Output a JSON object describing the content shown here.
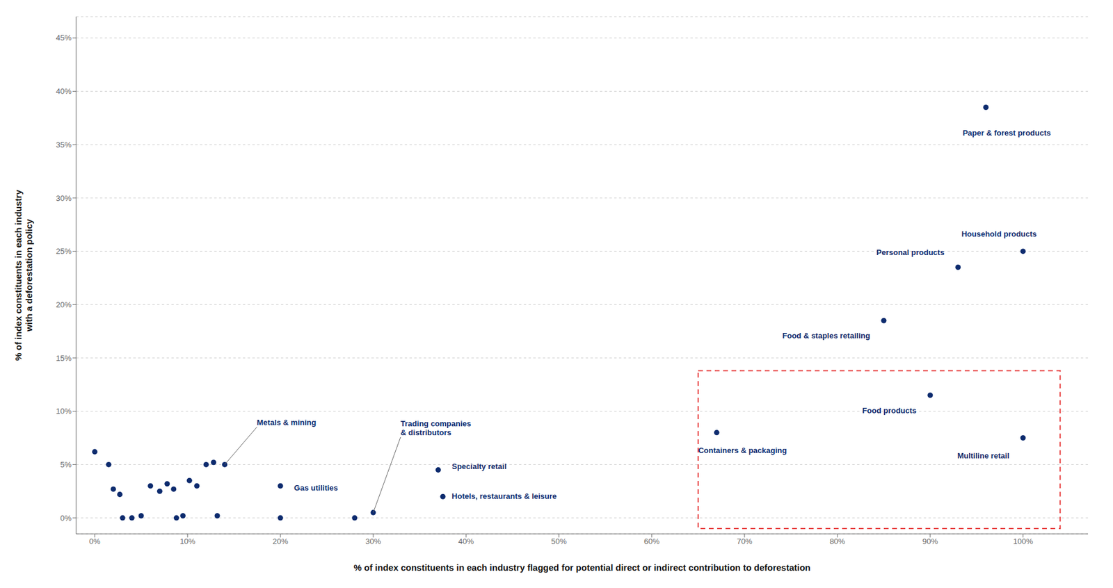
{
  "chart_data": {
    "type": "scatter",
    "xlabel": "% of index constituents in each industry flagged for potential direct or indirect contribution to deforestation",
    "ylabel": "% of index constituents in each industry\nwith a deforestation policy",
    "x": [
      0.0,
      1.5,
      2.0,
      2.7,
      3.0,
      4.0,
      5.0,
      6.0,
      7.0,
      7.8,
      8.5,
      8.8,
      9.5,
      10.2,
      11.0,
      12.0,
      12.8,
      13.2,
      14.0,
      20.0,
      20.0,
      28.0,
      30.0,
      37.0,
      37.5,
      67.0,
      90.0,
      85.0,
      93.0,
      96.0,
      100.0,
      100.0
    ],
    "values": [
      6.2,
      5.0,
      2.7,
      2.2,
      0.0,
      0.0,
      0.2,
      3.0,
      2.5,
      3.2,
      2.7,
      0.0,
      0.2,
      3.5,
      3.0,
      5.0,
      5.2,
      0.2,
      5.0,
      3.0,
      0.0,
      0.0,
      0.5,
      4.5,
      2.0,
      8.0,
      11.5,
      18.5,
      23.5,
      38.5,
      25.0,
      7.5
    ],
    "color": "#0d2b6e",
    "xlim": [
      -2,
      107
    ],
    "ylim": [
      -1.5,
      47
    ],
    "xticks": [
      {
        "value": 0,
        "label": "0%"
      },
      {
        "value": 10,
        "label": "10%"
      },
      {
        "value": 20,
        "label": "20%"
      },
      {
        "value": 30,
        "label": "30%"
      },
      {
        "value": 40,
        "label": "40%"
      },
      {
        "value": 50,
        "label": "50%"
      },
      {
        "value": 60,
        "label": "60%"
      },
      {
        "value": 70,
        "label": "70%"
      },
      {
        "value": 80,
        "label": "80%"
      },
      {
        "value": 90,
        "label": "90%"
      },
      {
        "value": 100,
        "label": "100%"
      }
    ],
    "yticks": [
      {
        "value": 0,
        "label": "0%"
      },
      {
        "value": 5,
        "label": "5%"
      },
      {
        "value": 10,
        "label": "10%"
      },
      {
        "value": 15,
        "label": "15%"
      },
      {
        "value": 20,
        "label": "20%"
      },
      {
        "value": 25,
        "label": "25%"
      },
      {
        "value": 30,
        "label": "30%"
      },
      {
        "value": 35,
        "label": "35%"
      },
      {
        "value": 40,
        "label": "40%"
      },
      {
        "value": 45,
        "label": "45%"
      }
    ],
    "grid": "y",
    "highlight_box": {
      "x": [
        65.0,
        104.0
      ],
      "y": [
        -1.0,
        13.8
      ],
      "color": "#e84040",
      "line_style": "dashed"
    },
    "annotations": [
      {
        "text": "Paper & forest products",
        "x": 96.0,
        "y": 38.5
      },
      {
        "text": "Household products",
        "x": 100.0,
        "y": 25.0
      },
      {
        "text": "Personal products",
        "x": 93.0,
        "y": 23.5
      },
      {
        "text": "Food & staples retailing",
        "x": 85.0,
        "y": 18.5
      },
      {
        "text": "Food products",
        "x": 90.0,
        "y": 11.5
      },
      {
        "text": "Containers & packaging",
        "x": 67.0,
        "y": 8.0
      },
      {
        "text": "Multiline retail",
        "x": 100.0,
        "y": 7.5
      },
      {
        "text": "Metals & mining",
        "x": 14.0,
        "y": 5.0
      },
      {
        "text": "Gas utilities",
        "x": 20.0,
        "y": 3.0
      },
      {
        "text": "Trading companies\n& distributors",
        "x": 30.0,
        "y": 0.5
      },
      {
        "text": "Specialty retail",
        "x": 37.0,
        "y": 4.5
      },
      {
        "text": "Hotels, restaurants & leisure",
        "x": 37.5,
        "y": 2.0
      }
    ]
  }
}
